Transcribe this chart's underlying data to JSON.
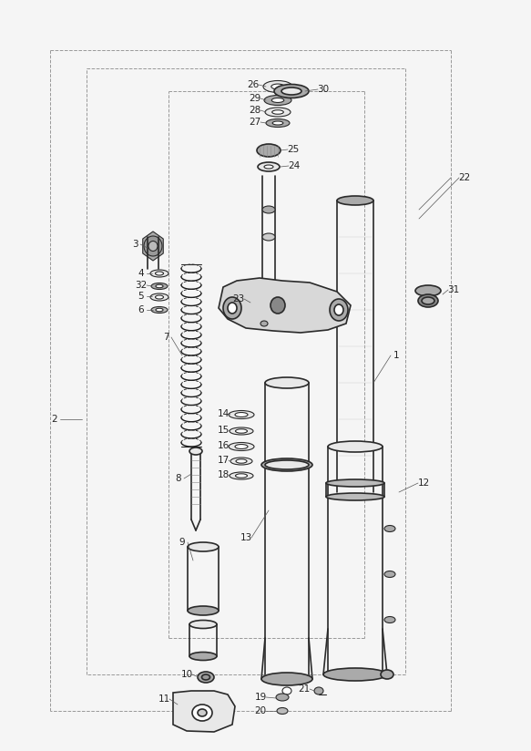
{
  "bg_color": "#f5f5f5",
  "line_color": "#2a2a2a",
  "fig_width": 5.83,
  "fig_height": 8.24,
  "dpi": 100,
  "border_color": "#cccccc",
  "part_color": "#e8e8e8",
  "dark_part": "#aaaaaa",
  "spring_color": "#1a1a1a",
  "label_color": "#222222",
  "label_fontsize": 7.0,
  "dashed_color": "#999999"
}
